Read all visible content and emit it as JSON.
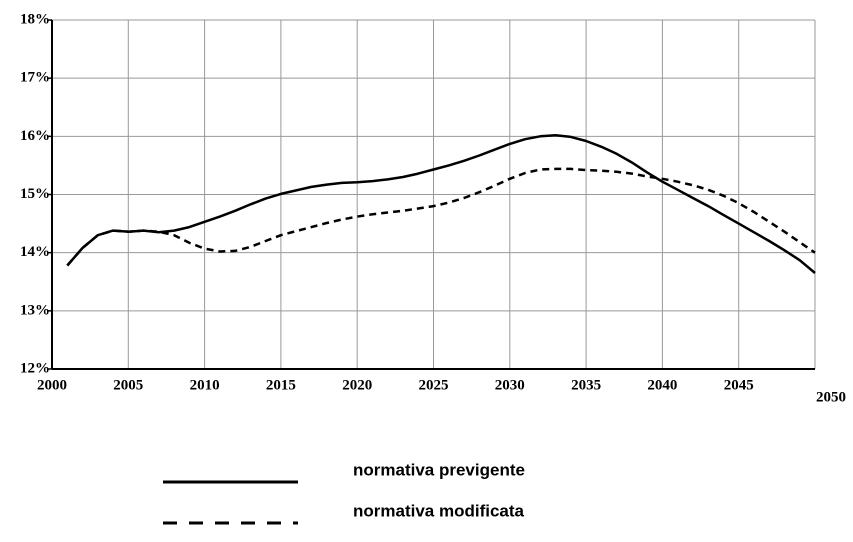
{
  "chart_data": {
    "type": "line",
    "x": [
      2001,
      2002,
      2003,
      2004,
      2005,
      2006,
      2007,
      2008,
      2009,
      2010,
      2011,
      2012,
      2013,
      2014,
      2015,
      2016,
      2017,
      2018,
      2019,
      2020,
      2021,
      2022,
      2023,
      2024,
      2025,
      2026,
      2027,
      2028,
      2029,
      2030,
      2031,
      2032,
      2033,
      2034,
      2035,
      2036,
      2037,
      2038,
      2039,
      2040,
      2041,
      2042,
      2043,
      2044,
      2045,
      2046,
      2047,
      2048,
      2049,
      2050
    ],
    "series": [
      {
        "name": "normativa previgente",
        "color": "#000000",
        "dash": false,
        "values": [
          13.78,
          14.08,
          14.3,
          14.38,
          14.36,
          14.38,
          14.35,
          14.38,
          14.44,
          14.53,
          14.62,
          14.72,
          14.83,
          14.93,
          15.01,
          15.07,
          15.13,
          15.17,
          15.2,
          15.21,
          15.23,
          15.26,
          15.3,
          15.36,
          15.43,
          15.5,
          15.58,
          15.67,
          15.77,
          15.87,
          15.95,
          16.0,
          16.02,
          15.99,
          15.92,
          15.82,
          15.7,
          15.55,
          15.38,
          15.22,
          15.08,
          14.94,
          14.8,
          14.65,
          14.5,
          14.35,
          14.2,
          14.04,
          13.87,
          13.65
        ]
      },
      {
        "name": "normativa modificata",
        "color": "#000000",
        "dash": true,
        "values": [
          13.78,
          14.08,
          14.3,
          14.38,
          14.36,
          14.38,
          14.36,
          14.3,
          14.17,
          14.07,
          14.02,
          14.03,
          14.1,
          14.2,
          14.3,
          14.37,
          14.44,
          14.51,
          14.57,
          14.62,
          14.66,
          14.69,
          14.72,
          14.76,
          14.8,
          14.86,
          14.94,
          15.04,
          15.15,
          15.27,
          15.37,
          15.43,
          15.44,
          15.44,
          15.42,
          15.41,
          15.39,
          15.36,
          15.31,
          15.27,
          15.22,
          15.16,
          15.08,
          14.98,
          14.85,
          14.7,
          14.53,
          14.36,
          14.18,
          14.0
        ]
      }
    ],
    "xlim": [
      2000,
      2050
    ],
    "xticks": [
      2000,
      2005,
      2010,
      2015,
      2020,
      2025,
      2030,
      2035,
      2040,
      2045,
      2050
    ],
    "ylim": [
      12,
      18
    ],
    "yticks": [
      {
        "value": 12,
        "label": "12%"
      },
      {
        "value": 13,
        "label": "13%"
      },
      {
        "value": 14,
        "label": "14%"
      },
      {
        "value": 15,
        "label": "15%"
      },
      {
        "value": 16,
        "label": "16%"
      },
      {
        "value": 17,
        "label": "17%"
      },
      {
        "value": 18,
        "label": "18%"
      }
    ],
    "grid": true
  }
}
